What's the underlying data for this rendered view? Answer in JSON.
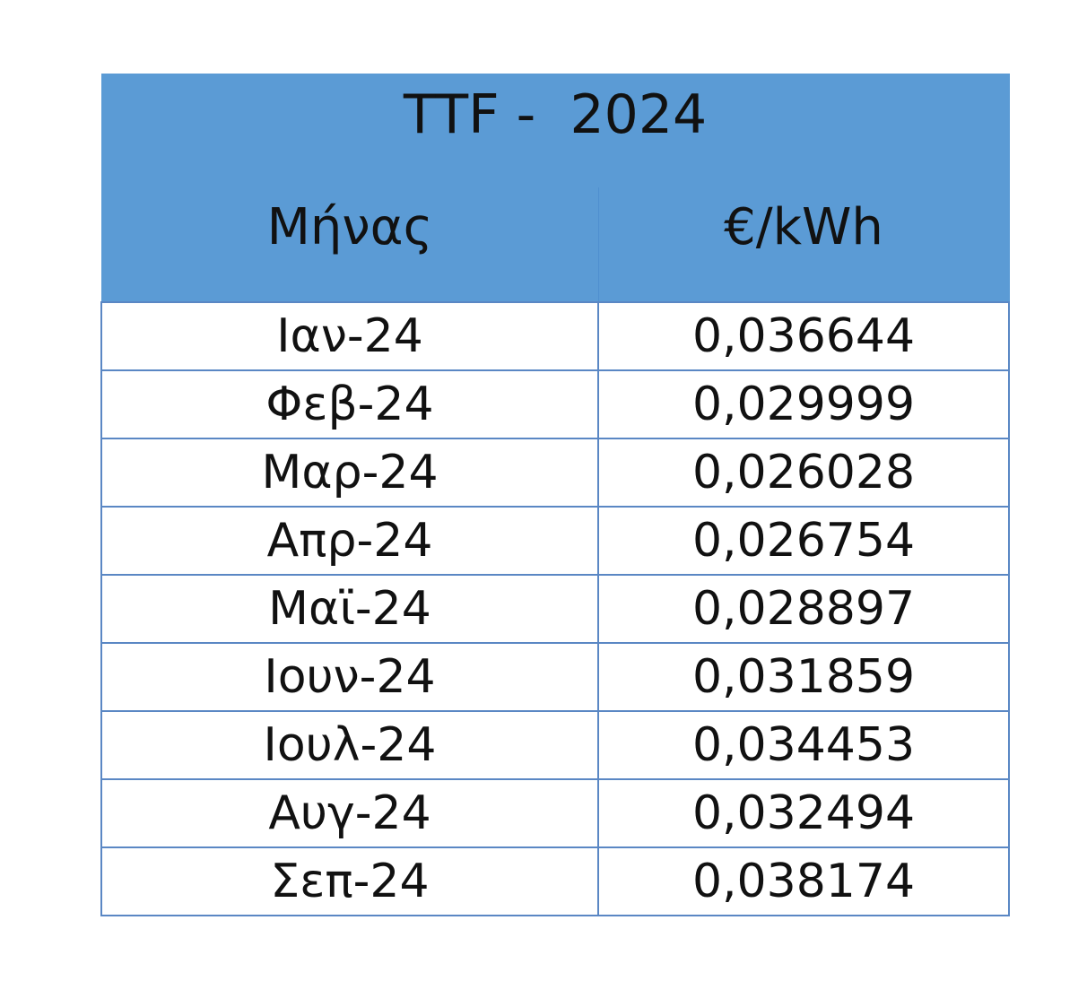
{
  "table": {
    "title": "TTF -  2024",
    "headers": [
      "Μήνας",
      "€/kWh"
    ],
    "rows": [
      {
        "month": "Ιαν-24",
        "price": "0,036644"
      },
      {
        "month": "Φεβ-24",
        "price": "0,029999"
      },
      {
        "month": "Μαρ-24",
        "price": "0,026028"
      },
      {
        "month": "Απρ-24",
        "price": "0,026754"
      },
      {
        "month": "Μαϊ-24",
        "price": "0,028897"
      },
      {
        "month": "Ιουν-24",
        "price": "0,031859"
      },
      {
        "month": "Ιουλ-24",
        "price": "0,034453"
      },
      {
        "month": "Αυγ-24",
        "price": "0,032494"
      },
      {
        "month": "Σεπ-24",
        "price": "0,038174"
      }
    ],
    "colors": {
      "header_background": "#5b9bd5",
      "grid_line": "#5a87c4",
      "text": "#111111"
    }
  }
}
